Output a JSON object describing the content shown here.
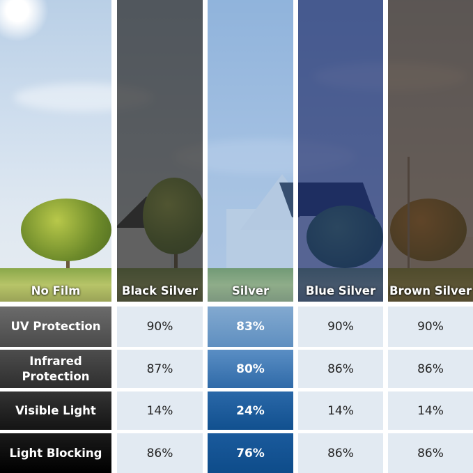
{
  "columns": [
    {
      "label": "No Film",
      "tint": "rgba(0,0,0,0)"
    },
    {
      "label": "Black Silver",
      "tint": "rgba(40,40,40,0.72)"
    },
    {
      "label": "Silver",
      "tint": "rgba(70,130,200,0.35)"
    },
    {
      "label": "Blue Silver",
      "tint": "rgba(25,45,110,0.72)"
    },
    {
      "label": "Brown Silver",
      "tint": "rgba(60,45,35,0.75)"
    }
  ],
  "rows": [
    {
      "label": "UV Protection",
      "values": [
        "90%",
        "83%",
        "90%",
        "90%"
      ],
      "label_bg": "linear-gradient(180deg,#6b6b6b,#4a4a4a)",
      "hl_bg": "linear-gradient(180deg,#82a9d0,#5f8fc0)"
    },
    {
      "label": "Infrared Protection",
      "values": [
        "87%",
        "80%",
        "86%",
        "86%"
      ],
      "label_bg": "linear-gradient(180deg,#4d4d4d,#2e2e2e)",
      "hl_bg": "linear-gradient(180deg,#5a8ec4,#2f6aa8)"
    },
    {
      "label": "Visible Light",
      "values": [
        "14%",
        "24%",
        "14%",
        "14%"
      ],
      "label_bg": "linear-gradient(180deg,#333,#141414)",
      "hl_bg": "linear-gradient(180deg,#2a68a8,#11508f)"
    },
    {
      "label": "Light Blocking",
      "values": [
        "86%",
        "76%",
        "86%",
        "86%"
      ],
      "label_bg": "linear-gradient(180deg,#1a1a1a,#000)",
      "hl_bg": "linear-gradient(180deg,#1a5a9c,#0e4c8a)"
    }
  ],
  "colors": {
    "cell_bg": "#e2eaf2",
    "highlight_column": "Silver"
  }
}
